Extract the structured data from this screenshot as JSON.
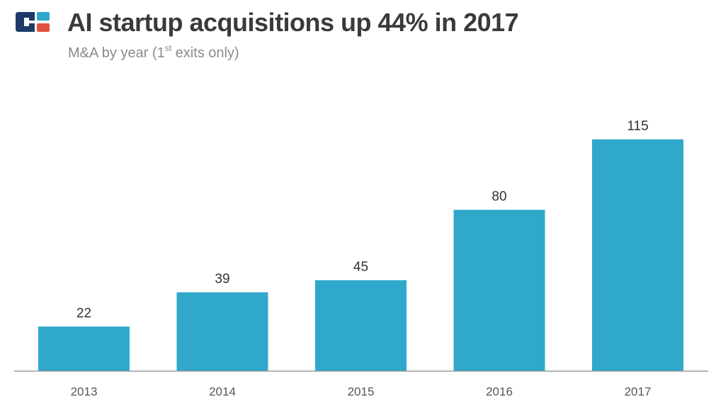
{
  "header": {
    "title": "AI startup acquisitions up 44% in 2017",
    "subtitle_pre": "M&A by year (1",
    "subtitle_sup": "st",
    "subtitle_post": " exits only)",
    "logo_icon": "cb-insights-logo-icon"
  },
  "colors": {
    "bar": "#2fa8cb",
    "axis": "#999999",
    "logo_navy": "#1f3a66",
    "logo_red": "#e2523f",
    "logo_blue": "#2fa8cb"
  },
  "chart_data": {
    "type": "bar",
    "categories": [
      "2013",
      "2014",
      "2015",
      "2016",
      "2017"
    ],
    "values": [
      22,
      39,
      45,
      80,
      115
    ],
    "title": "AI startup acquisitions up 44% in 2017",
    "subtitle": "M&A by year (1st exits only)",
    "xlabel": "",
    "ylabel": "",
    "ylim": [
      0,
      115
    ],
    "grid": false,
    "legend": "none",
    "data_labels": true
  }
}
